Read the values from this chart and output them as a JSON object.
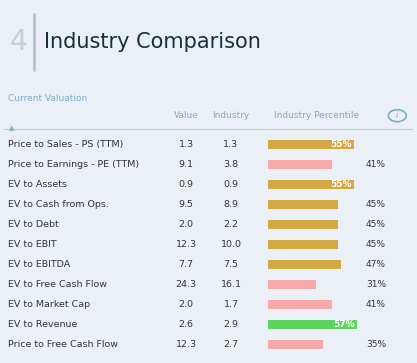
{
  "title": "Industry Comparison",
  "title_number": "4",
  "subtitle": "Current Valuation",
  "col_headers": [
    "Value",
    "Industry",
    "Industry Percentile"
  ],
  "rows": [
    {
      "label": "Price to Sales - PS (TTM)",
      "value": "1.3",
      "industry": "1.3",
      "percentile": 55,
      "bar_color": "#d4a843"
    },
    {
      "label": "Price to Earnings - PE (TTM)",
      "value": "9.1",
      "industry": "3.8",
      "percentile": 41,
      "bar_color": "#f7a8a8"
    },
    {
      "label": "EV to Assets",
      "value": "0.9",
      "industry": "0.9",
      "percentile": 55,
      "bar_color": "#d4a843"
    },
    {
      "label": "EV to Cash from Ops.",
      "value": "9.5",
      "industry": "8.9",
      "percentile": 45,
      "bar_color": "#d4a843"
    },
    {
      "label": "EV to Debt",
      "value": "2.0",
      "industry": "2.2",
      "percentile": 45,
      "bar_color": "#d4a843"
    },
    {
      "label": "EV to EBIT",
      "value": "12.3",
      "industry": "10.0",
      "percentile": 45,
      "bar_color": "#d4a843"
    },
    {
      "label": "EV to EBITDA",
      "value": "7.7",
      "industry": "7.5",
      "percentile": 47,
      "bar_color": "#d4a843"
    },
    {
      "label": "EV to Free Cash Flow",
      "value": "24.3",
      "industry": "16.1",
      "percentile": 31,
      "bar_color": "#f7a8a8"
    },
    {
      "label": "EV to Market Cap",
      "value": "2.0",
      "industry": "1.7",
      "percentile": 41,
      "bar_color": "#f7a8a8"
    },
    {
      "label": "EV to Revenue",
      "value": "2.6",
      "industry": "2.9",
      "percentile": 57,
      "bar_color": "#5dd45d"
    },
    {
      "label": "Price to Free Cash Flow",
      "value": "12.3",
      "industry": "2.7",
      "percentile": 35,
      "bar_color": "#f7a8a8"
    }
  ],
  "bg_color": "#eaf0f6",
  "title_bg": "#f5f8fb",
  "table_bg": "#ffffff",
  "header_color": "#7ab0c8",
  "title_color": "#1a2e3b",
  "label_color": "#333333",
  "value_color": "#8aaabb",
  "sep_color": "#b8d0de",
  "bar_scale": 60
}
